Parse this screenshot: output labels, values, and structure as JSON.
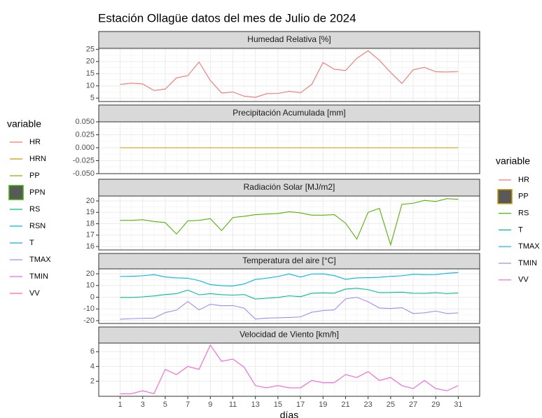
{
  "title": "Estación Ollagüe datos del mes de Julio de 2024",
  "legend_left": {
    "title": "variable",
    "items": [
      {
        "name": "HR",
        "color": "#F8766D"
      },
      {
        "name": "HRN",
        "color": "#D89000"
      },
      {
        "name": "PP",
        "color": "#A3A500"
      },
      {
        "name": "PPN",
        "color": "#39B600",
        "key": "box",
        "fill": "#595959"
      },
      {
        "name": "RS",
        "color": "#00BF7D"
      },
      {
        "name": "RSN",
        "color": "#00BFC4"
      },
      {
        "name": "T",
        "color": "#00B0F6"
      },
      {
        "name": "TMAX",
        "color": "#9590FF"
      },
      {
        "name": "TMIN",
        "color": "#E76BF3"
      },
      {
        "name": "VV",
        "color": "#FF62BC"
      }
    ]
  },
  "legend_right": {
    "title": "variable"
  },
  "chart_data": [
    {
      "type": "line",
      "title": "Humedad Relativa [%]",
      "x": [
        1,
        2,
        3,
        4,
        5,
        6,
        7,
        8,
        9,
        10,
        11,
        12,
        13,
        14,
        15,
        16,
        17,
        18,
        19,
        20,
        21,
        22,
        23,
        24,
        25,
        26,
        27,
        28,
        29,
        30,
        31
      ],
      "xlim": [
        -0.9,
        32.9
      ],
      "xticks": [
        1,
        3,
        5,
        7,
        9,
        11,
        13,
        15,
        17,
        19,
        21,
        23,
        25,
        27,
        29,
        31
      ],
      "ylim": [
        3.6,
        25.4
      ],
      "yticks": [
        5,
        10,
        15,
        20,
        25
      ],
      "series": [
        {
          "name": "HR",
          "color": "#F8766D",
          "values": [
            10.6,
            11.1,
            10.8,
            8.1,
            8.7,
            13.3,
            14.2,
            19.8,
            12.2,
            7.1,
            7.5,
            5.8,
            5.3,
            6.8,
            6.9,
            7.8,
            7.2,
            10.6,
            19.6,
            16.8,
            16.3,
            21.3,
            24.4,
            20.5,
            15.5,
            11.0,
            16.6,
            17.6,
            15.8,
            15.7,
            15.9
          ]
        }
      ]
    },
    {
      "type": "line",
      "title": "Precipitación Acumulada [mm]",
      "x": [
        1,
        2,
        3,
        4,
        5,
        6,
        7,
        8,
        9,
        10,
        11,
        12,
        13,
        14,
        15,
        16,
        17,
        18,
        19,
        20,
        21,
        22,
        23,
        24,
        25,
        26,
        27,
        28,
        29,
        30,
        31
      ],
      "xlim": [
        -0.9,
        32.9
      ],
      "xticks": [
        1,
        3,
        5,
        7,
        9,
        11,
        13,
        15,
        17,
        19,
        21,
        23,
        25,
        27,
        29,
        31
      ],
      "ylim": [
        -0.05,
        0.05
      ],
      "yticks": [
        {
          "value": -0.05,
          "label": "-0.050"
        },
        {
          "value": -0.025,
          "label": "-0.025"
        },
        {
          "value": 0,
          "label": "0.000"
        },
        {
          "value": 0.025,
          "label": "0.025"
        },
        {
          "value": 0.05,
          "label": "0.050"
        }
      ],
      "series": [
        {
          "name": "PP",
          "color": "#C49A00",
          "legend_key": "box",
          "key_fill": "#595959",
          "values": [
            0,
            0,
            0,
            0,
            0,
            0,
            0,
            0,
            0,
            0,
            0,
            0,
            0,
            0,
            0,
            0,
            0,
            0,
            0,
            0,
            0,
            0,
            0,
            0,
            0,
            0,
            0,
            0,
            0,
            0,
            0
          ]
        }
      ]
    },
    {
      "type": "line",
      "title": "Radiación Solar [MJ/m2]",
      "x": [
        1,
        2,
        3,
        4,
        5,
        6,
        7,
        8,
        9,
        10,
        11,
        12,
        13,
        14,
        15,
        16,
        17,
        18,
        19,
        20,
        21,
        22,
        23,
        24,
        25,
        26,
        27,
        28,
        29,
        30,
        31
      ],
      "xlim": [
        -0.9,
        32.9
      ],
      "xticks": [
        1,
        3,
        5,
        7,
        9,
        11,
        13,
        15,
        17,
        19,
        21,
        23,
        25,
        27,
        29,
        31
      ],
      "ylim": [
        15.7,
        20.43
      ],
      "yticks": [
        16,
        17,
        18,
        19,
        20
      ],
      "series": [
        {
          "name": "RS",
          "color": "#53B400",
          "values": [
            18.3,
            18.3,
            18.35,
            18.2,
            18.1,
            17.1,
            18.25,
            18.3,
            18.45,
            17.4,
            18.55,
            18.65,
            18.8,
            18.85,
            18.9,
            19.05,
            18.95,
            18.75,
            18.75,
            18.8,
            18.05,
            16.65,
            19.0,
            19.35,
            16.15,
            19.7,
            19.8,
            20.05,
            19.95,
            20.2,
            20.15
          ]
        }
      ]
    },
    {
      "type": "line",
      "title": "Temperatura del aire [°C]",
      "x": [
        1,
        2,
        3,
        4,
        5,
        6,
        7,
        8,
        9,
        10,
        11,
        12,
        13,
        14,
        15,
        16,
        17,
        18,
        19,
        20,
        21,
        22,
        23,
        24,
        25,
        26,
        27,
        28,
        29,
        30,
        31
      ],
      "xlim": [
        -0.9,
        32.9
      ],
      "xticks": [
        1,
        3,
        5,
        7,
        9,
        11,
        13,
        15,
        17,
        19,
        21,
        23,
        25,
        27,
        29,
        31
      ],
      "ylim": [
        -22.4,
        24.2
      ],
      "yticks": [
        -20,
        -10,
        0,
        10,
        20
      ],
      "series": [
        {
          "name": "T",
          "color": "#00C094",
          "values": [
            -0.2,
            -0.2,
            0.3,
            1.1,
            2.3,
            3.0,
            6.1,
            2.1,
            3.0,
            2.2,
            1.8,
            2.3,
            -1.5,
            -0.9,
            -0.2,
            1.2,
            0.4,
            3.4,
            3.8,
            3.5,
            6.9,
            7.6,
            6.5,
            3.9,
            4.0,
            4.3,
            3.4,
            3.3,
            3.9,
            3.1,
            3.7
          ]
        },
        {
          "name": "TMAX",
          "color": "#00B6EB",
          "values": [
            17.7,
            17.9,
            18.3,
            19.3,
            17.3,
            16.5,
            16.2,
            14.2,
            10.8,
            9.9,
            9.6,
            11.3,
            15.2,
            16.2,
            17.7,
            19.9,
            17.2,
            19.8,
            19.9,
            18.5,
            15.3,
            16.5,
            16.7,
            17.0,
            17.8,
            18.3,
            19.6,
            19.3,
            19.4,
            20.4,
            21.0
          ]
        },
        {
          "name": "TMIN",
          "color": "#A58AFF",
          "values": [
            -18.8,
            -18.3,
            -18.0,
            -17.8,
            -13.1,
            -11.0,
            -3.7,
            -10.8,
            -6.0,
            -7.3,
            -7.1,
            -9.3,
            -18.6,
            -17.8,
            -17.6,
            -17.3,
            -16.8,
            -12.8,
            -11.4,
            -10.8,
            -1.4,
            -0.1,
            -3.9,
            -9.2,
            -9.6,
            -8.9,
            -13.9,
            -13.3,
            -11.8,
            -13.9,
            -13.4
          ]
        }
      ]
    },
    {
      "type": "line",
      "title": "Velocidad de Viento [km/h]",
      "x_label": "días",
      "x": [
        1,
        2,
        3,
        4,
        5,
        6,
        7,
        8,
        9,
        10,
        11,
        12,
        13,
        14,
        15,
        16,
        17,
        18,
        19,
        20,
        21,
        22,
        23,
        24,
        25,
        26,
        27,
        28,
        29,
        30,
        31
      ],
      "xlim": [
        -0.9,
        32.9
      ],
      "xticks": [
        1,
        3,
        5,
        7,
        9,
        11,
        13,
        15,
        17,
        19,
        21,
        23,
        25,
        27,
        29,
        31
      ],
      "ylim": [
        -0.05,
        7.17
      ],
      "yticks": [
        2,
        4,
        6
      ],
      "series": [
        {
          "name": "VV",
          "color": "#FB61D7",
          "values": [
            0.3,
            0.3,
            0.7,
            0.3,
            3.6,
            2.9,
            4.0,
            3.6,
            6.9,
            4.7,
            5.0,
            3.9,
            1.4,
            1.1,
            1.4,
            1.1,
            1.1,
            2.1,
            1.8,
            1.8,
            2.9,
            2.5,
            3.3,
            2.1,
            2.5,
            1.4,
            1.0,
            2.1,
            1.0,
            0.7,
            1.4
          ]
        }
      ]
    }
  ]
}
